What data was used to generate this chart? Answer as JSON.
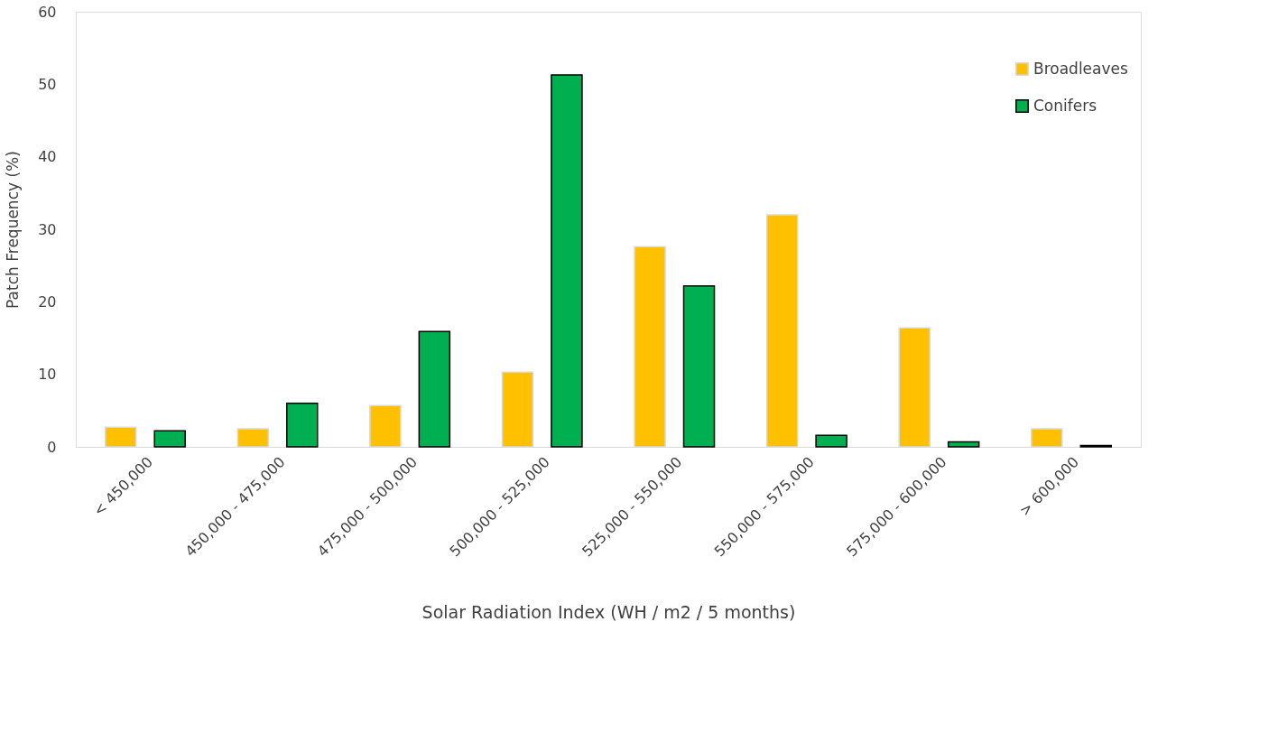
{
  "chart_data": {
    "type": "bar",
    "xlabel": "Solar Radiation Index (WH / m2 / 5 months)",
    "ylabel": "Patch Frequency (%)",
    "categories": [
      "< 450,000",
      "450,000 - 475,000",
      "475,000 - 500,000",
      "500,000 - 525,000",
      "525,000 - 550,000",
      "550,000 - 575,000",
      "575,000 - 600,000",
      "> 600,000"
    ],
    "series": [
      {
        "name": "Broadleaves",
        "color": "#ffc000",
        "values": [
          2.7,
          2.5,
          5.7,
          10.3,
          27.6,
          32.0,
          16.4,
          2.5
        ]
      },
      {
        "name": "Conifers",
        "color": "#00b050",
        "values": [
          2.2,
          6.0,
          15.9,
          51.3,
          22.2,
          1.6,
          0.7,
          0.2
        ]
      }
    ],
    "ylim": [
      0,
      60
    ],
    "yticks": [
      0,
      10,
      20,
      30,
      40,
      50,
      60
    ],
    "grid": false,
    "legend": "top right"
  }
}
